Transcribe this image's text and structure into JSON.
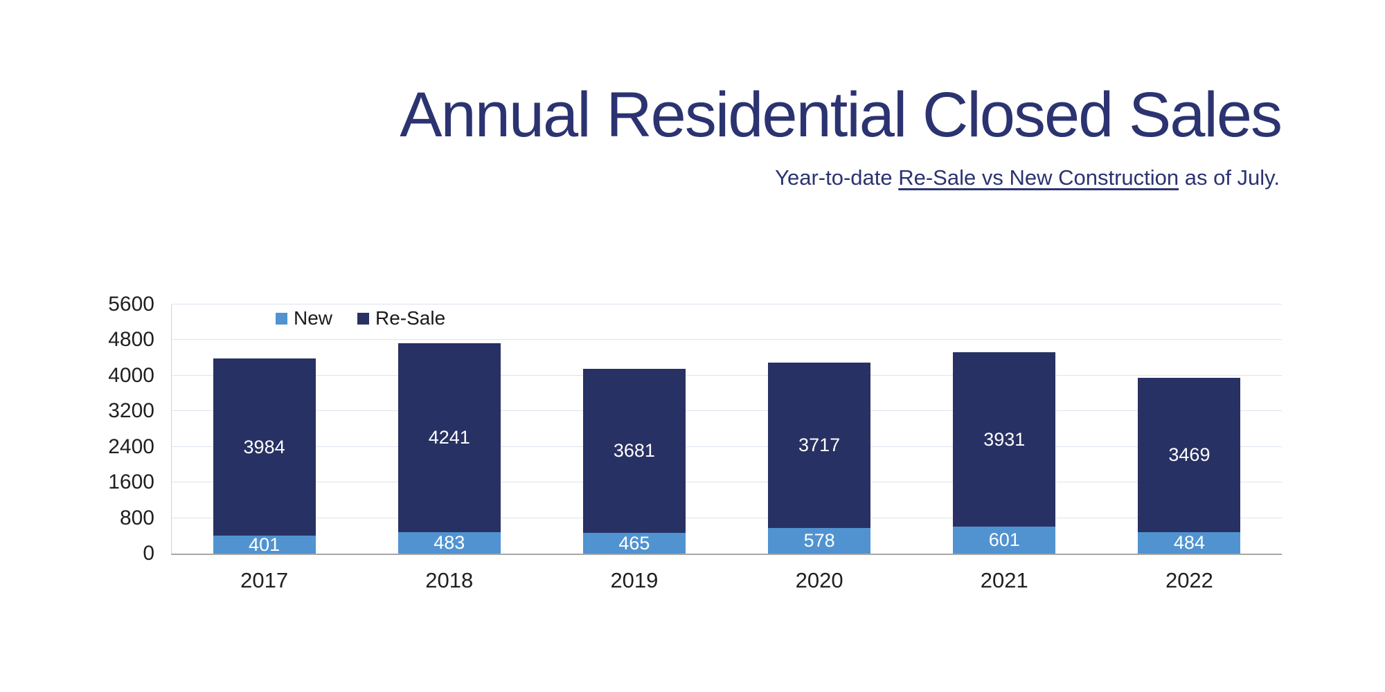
{
  "slide": {
    "title": "Annual Residential Closed Sales",
    "subtitle": {
      "prefix": "Year-to-date ",
      "underlined": "Re-Sale vs New Construction",
      "suffix": " as of July."
    }
  },
  "chart_data": {
    "type": "bar",
    "stacked": true,
    "title": "Annual Residential Closed Sales",
    "categories": [
      "2017",
      "2018",
      "2019",
      "2020",
      "2021",
      "2022"
    ],
    "series": [
      {
        "name": "New",
        "color": "#5093d0",
        "values": [
          401,
          483,
          465,
          578,
          601,
          484
        ]
      },
      {
        "name": "Re-Sale",
        "color": "#283163",
        "values": [
          3984,
          4241,
          3681,
          3717,
          3931,
          3469
        ]
      }
    ],
    "ylim": [
      0,
      5600
    ],
    "yticks": [
      0,
      800,
      1600,
      2400,
      3200,
      4000,
      4800,
      5600
    ],
    "grid": true,
    "legend_position": "inside-top-left",
    "value_labels": "white text centered inside each segment",
    "xlabel": "",
    "ylabel": ""
  },
  "colors": {
    "title_text": "#2b3370",
    "new_bar": "#5093d0",
    "resale_bar": "#283163",
    "gridline": "#dce3f0",
    "baseline": "#a6a6a6",
    "axis_text": "#1f1f1f",
    "value_label_text": "#ffffff",
    "background": "#ffffff"
  }
}
